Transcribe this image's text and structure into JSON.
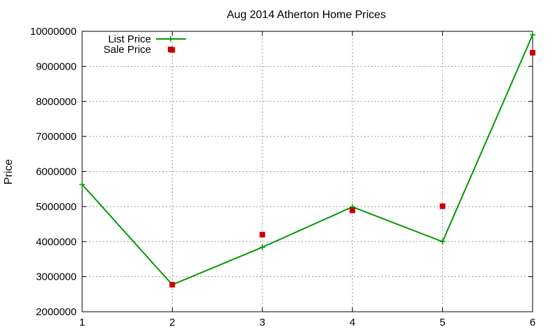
{
  "chart_data": {
    "type": "line",
    "title": "Aug 2014 Atherton Home Prices",
    "xlabel": "",
    "ylabel": "Price",
    "xlim": [
      1,
      6
    ],
    "ylim": [
      2000000,
      10000000
    ],
    "x_ticks": [
      "1",
      "2",
      "3",
      "4",
      "5",
      "6"
    ],
    "y_ticks": [
      "2000000",
      "3000000",
      "4000000",
      "5000000",
      "6000000",
      "7000000",
      "8000000",
      "9000000",
      "10000000"
    ],
    "grid": true,
    "legend_position": "top-left",
    "series": [
      {
        "name": "List Price",
        "style": "line-with-plus-markers",
        "color": "#009900",
        "x": [
          1,
          2,
          3,
          4,
          5,
          6
        ],
        "y": [
          5630000,
          2770000,
          3840000,
          4990000,
          4000000,
          9900000
        ]
      },
      {
        "name": "Sale Price",
        "style": "square-markers",
        "color": "#cc0000",
        "x": [
          2,
          3,
          4,
          5,
          6
        ],
        "y": [
          9470000,
          4200000,
          4890000,
          5010000,
          9390000
        ]
      },
      {
        "name": "",
        "style": "square-markers",
        "color": "#cc0000",
        "x": [
          2
        ],
        "y": [
          2770000
        ]
      }
    ]
  }
}
